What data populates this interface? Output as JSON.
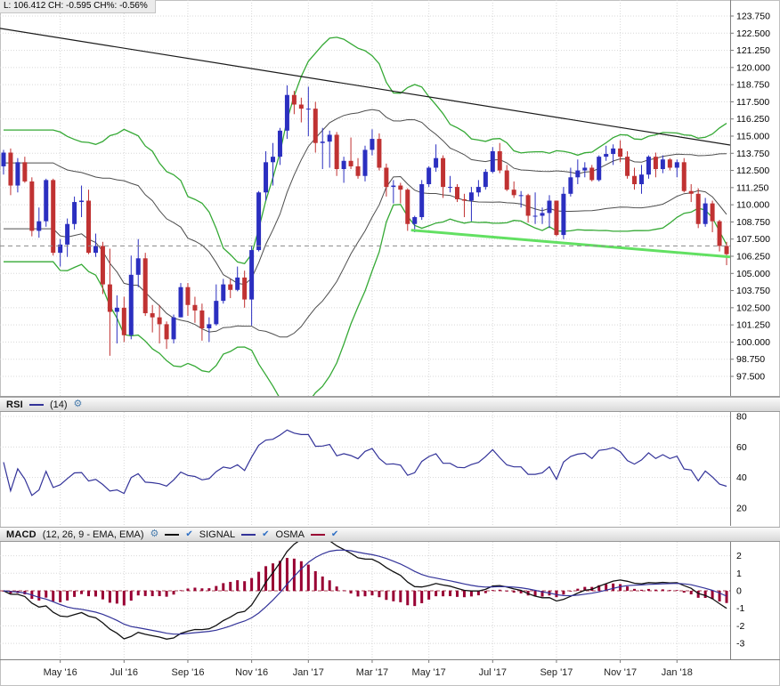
{
  "info_bar": {
    "text": "L: 106.412 CH: -0.595 CH%: -0.56%"
  },
  "icons": {
    "settings": "⚙",
    "check": "✔"
  },
  "colors": {
    "candle_up": "#2b2fc0",
    "candle_down": "#c03232",
    "band_inner": "#4d4d4d",
    "band_outer": "#35a935",
    "trendline": "#1a1a1a",
    "support_line": "#62e062",
    "prev_close_line": "#8a8a8a",
    "rsi_line": "#333399",
    "macd_line": "#111111",
    "signal_line": "#333399",
    "osma_bar": "#990033",
    "zero_line": "#aa4455",
    "grid": "#d8d8d8"
  },
  "panels": {
    "rsi": {
      "title": "RSI",
      "period_label": "(14)"
    },
    "macd": {
      "title": "MACD",
      "params": "(12, 26, 9 - EMA, EMA)",
      "signal_label": "SIGNAL",
      "osma_label": "OSMA"
    }
  },
  "chart_data": [
    {
      "id": "price",
      "type": "candlestick",
      "timeframe": "weekly",
      "y_axis": {
        "min": 97.5,
        "max": 123.75,
        "step": 1.25,
        "decimals": 3
      },
      "x_labels": [
        {
          "label": "May '16",
          "index": 8
        },
        {
          "label": "Jul '16",
          "index": 17
        },
        {
          "label": "Sep '16",
          "index": 26
        },
        {
          "label": "Nov '16",
          "index": 35
        },
        {
          "label": "Jan '17",
          "index": 43
        },
        {
          "label": "Mar '17",
          "index": 52
        },
        {
          "label": "May '17",
          "index": 60
        },
        {
          "label": "Jul '17",
          "index": 69
        },
        {
          "label": "Sep '17",
          "index": 78
        },
        {
          "label": "Nov '17",
          "index": 87
        },
        {
          "label": "Jan '18",
          "index": 95
        }
      ],
      "candles": [
        [
          112.8,
          114.0,
          112.2,
          113.8
        ],
        [
          113.8,
          114.1,
          110.7,
          111.4
        ],
        [
          111.4,
          113.4,
          110.9,
          113.1
        ],
        [
          113.1,
          113.5,
          111.6,
          111.7
        ],
        [
          111.7,
          112.0,
          107.7,
          108.1
        ],
        [
          108.1,
          109.8,
          107.6,
          108.8
        ],
        [
          108.8,
          111.9,
          108.4,
          111.8
        ],
        [
          111.8,
          111.9,
          106.3,
          106.5
        ],
        [
          106.5,
          107.5,
          105.5,
          107.1
        ],
        [
          107.1,
          109.0,
          106.2,
          108.6
        ],
        [
          108.6,
          110.6,
          108.2,
          110.2
        ],
        [
          110.2,
          111.4,
          109.1,
          110.3
        ],
        [
          110.3,
          111.1,
          106.4,
          106.5
        ],
        [
          106.5,
          107.9,
          106.2,
          107.0
        ],
        [
          107.0,
          107.3,
          103.5,
          104.2
        ],
        [
          104.2,
          106.8,
          99.0,
          102.2
        ],
        [
          102.2,
          103.4,
          99.9,
          102.5
        ],
        [
          102.5,
          103.3,
          100.0,
          100.5
        ],
        [
          100.5,
          106.3,
          100.2,
          104.9
        ],
        [
          104.9,
          107.5,
          104.0,
          106.1
        ],
        [
          106.1,
          106.5,
          101.9,
          102.1
        ],
        [
          102.1,
          102.7,
          100.7,
          101.8
        ],
        [
          101.8,
          102.7,
          99.9,
          101.3
        ],
        [
          101.3,
          101.5,
          99.5,
          100.2
        ],
        [
          100.2,
          102.0,
          99.9,
          101.8
        ],
        [
          101.8,
          104.3,
          101.8,
          104.0
        ],
        [
          104.0,
          104.3,
          101.9,
          102.7
        ],
        [
          102.7,
          103.3,
          101.4,
          102.3
        ],
        [
          102.3,
          102.8,
          100.1,
          101.0
        ],
        [
          101.0,
          101.8,
          100.0,
          101.3
        ],
        [
          101.3,
          104.2,
          101.2,
          103.0
        ],
        [
          103.0,
          104.6,
          102.8,
          104.2
        ],
        [
          104.2,
          104.6,
          103.2,
          103.8
        ],
        [
          103.8,
          105.5,
          103.7,
          104.7
        ],
        [
          104.7,
          105.2,
          102.5,
          103.1
        ],
        [
          103.1,
          107.0,
          101.2,
          106.7
        ],
        [
          106.7,
          111.0,
          106.6,
          110.9
        ],
        [
          110.9,
          113.9,
          110.3,
          113.1
        ],
        [
          113.1,
          114.5,
          111.4,
          113.5
        ],
        [
          113.5,
          115.6,
          112.9,
          115.4
        ],
        [
          115.4,
          118.7,
          114.8,
          118.0
        ],
        [
          118.0,
          118.3,
          116.6,
          117.3
        ],
        [
          117.3,
          117.8,
          116.0,
          117.0
        ],
        [
          117.0,
          118.6,
          115.0,
          117.0
        ],
        [
          117.0,
          117.5,
          113.8,
          114.5
        ],
        [
          114.5,
          115.6,
          112.6,
          114.6
        ],
        [
          114.6,
          115.4,
          112.7,
          115.1
        ],
        [
          115.1,
          115.3,
          112.1,
          112.6
        ],
        [
          112.6,
          113.5,
          111.6,
          113.2
        ],
        [
          113.2,
          114.9,
          112.6,
          112.8
        ],
        [
          112.8,
          113.4,
          111.9,
          112.1
        ],
        [
          112.1,
          114.3,
          111.7,
          114.0
        ],
        [
          114.0,
          115.5,
          113.6,
          114.8
        ],
        [
          114.8,
          115.2,
          112.5,
          112.7
        ],
        [
          112.7,
          113.0,
          110.6,
          111.3
        ],
        [
          111.3,
          111.8,
          110.1,
          111.4
        ],
        [
          111.4,
          111.6,
          110.1,
          111.1
        ],
        [
          111.1,
          111.2,
          108.1,
          108.6
        ],
        [
          108.6,
          109.2,
          108.0,
          109.1
        ],
        [
          109.1,
          111.8,
          108.9,
          111.5
        ],
        [
          111.5,
          112.8,
          111.3,
          112.7
        ],
        [
          112.7,
          114.4,
          112.4,
          113.4
        ],
        [
          113.4,
          113.6,
          110.5,
          111.3
        ],
        [
          111.3,
          112.1,
          110.9,
          111.3
        ],
        [
          111.3,
          111.5,
          110.2,
          110.4
        ],
        [
          110.4,
          110.8,
          109.1,
          110.3
        ],
        [
          110.3,
          111.3,
          108.8,
          110.9
        ],
        [
          110.9,
          111.8,
          110.6,
          111.3
        ],
        [
          111.3,
          112.6,
          111.1,
          112.4
        ],
        [
          112.4,
          114.2,
          112.3,
          113.9
        ],
        [
          113.9,
          114.5,
          112.3,
          112.5
        ],
        [
          112.5,
          112.9,
          111.0,
          111.1
        ],
        [
          111.1,
          111.7,
          110.5,
          110.7
        ],
        [
          110.7,
          111.0,
          109.8,
          110.7
        ],
        [
          110.7,
          110.8,
          108.7,
          109.2
        ],
        [
          109.2,
          110.9,
          108.6,
          109.2
        ],
        [
          109.2,
          109.8,
          108.6,
          109.4
        ],
        [
          109.4,
          110.7,
          108.3,
          110.3
        ],
        [
          110.3,
          110.3,
          107.7,
          107.8
        ],
        [
          107.8,
          111.3,
          107.5,
          110.8
        ],
        [
          110.8,
          112.7,
          110.6,
          112.0
        ],
        [
          112.0,
          113.3,
          111.5,
          112.5
        ],
        [
          112.5,
          113.1,
          112.0,
          112.7
        ],
        [
          112.7,
          112.9,
          111.7,
          111.8
        ],
        [
          111.8,
          113.6,
          111.7,
          113.5
        ],
        [
          113.5,
          114.3,
          113.2,
          113.7
        ],
        [
          113.7,
          114.4,
          112.9,
          114.1
        ],
        [
          114.1,
          114.7,
          113.1,
          113.5
        ],
        [
          113.5,
          113.9,
          111.9,
          112.1
        ],
        [
          112.1,
          112.7,
          111.1,
          111.5
        ],
        [
          111.5,
          112.9,
          110.8,
          112.2
        ],
        [
          112.2,
          113.6,
          111.9,
          113.5
        ],
        [
          113.5,
          113.8,
          112.0,
          112.6
        ],
        [
          112.6,
          113.6,
          112.3,
          113.3
        ],
        [
          113.3,
          113.4,
          112.5,
          112.7
        ],
        [
          112.7,
          113.3,
          112.0,
          113.1
        ],
        [
          113.1,
          113.4,
          110.9,
          111.0
        ],
        [
          111.0,
          111.5,
          110.2,
          110.8
        ],
        [
          110.8,
          111.2,
          108.3,
          108.6
        ],
        [
          108.6,
          110.5,
          108.4,
          110.1
        ],
        [
          110.1,
          110.3,
          108.0,
          108.8
        ],
        [
          108.8,
          108.9,
          106.6,
          107.0
        ],
        [
          107.0,
          107.3,
          105.6,
          106.4
        ]
      ],
      "overlays": {
        "bands": [
          {
            "name": "inner",
            "period": 20,
            "deviation": 1,
            "color": "#4d4d4d",
            "width": 1
          },
          {
            "name": "outer",
            "period": 20,
            "deviation": 2,
            "color": "#35a935",
            "width": 1.3
          }
        ],
        "trendlines": [
          {
            "name": "descending-resistance",
            "x1_frac": 0,
            "price1": 122.85,
            "x2_frac": 1,
            "price2": 114.35,
            "color": "#1a1a1a",
            "width": 1.2
          },
          {
            "name": "support",
            "x1_frac": 0.563,
            "price1": 108.15,
            "x2_frac": 1,
            "price2": 106.2,
            "color": "#62e062",
            "width": 3
          }
        ],
        "previous_close_line": {
          "price": 107.007,
          "color": "#8a8a8a"
        }
      }
    },
    {
      "id": "rsi",
      "type": "line",
      "indicator": "RSI",
      "period": 14,
      "derived_from": "price.closes",
      "y_ticks": [
        80,
        60,
        40,
        20
      ],
      "color": "#333399"
    },
    {
      "id": "macd",
      "type": "macd",
      "params": {
        "fast": 12,
        "slow": 26,
        "signal": 9,
        "method": "EMA"
      },
      "derived_from": "price.closes",
      "y_ticks": [
        2,
        1,
        0,
        -1,
        -2,
        -3
      ],
      "colors": {
        "macd": "#111111",
        "signal": "#333399",
        "osma": "#990033"
      }
    }
  ]
}
